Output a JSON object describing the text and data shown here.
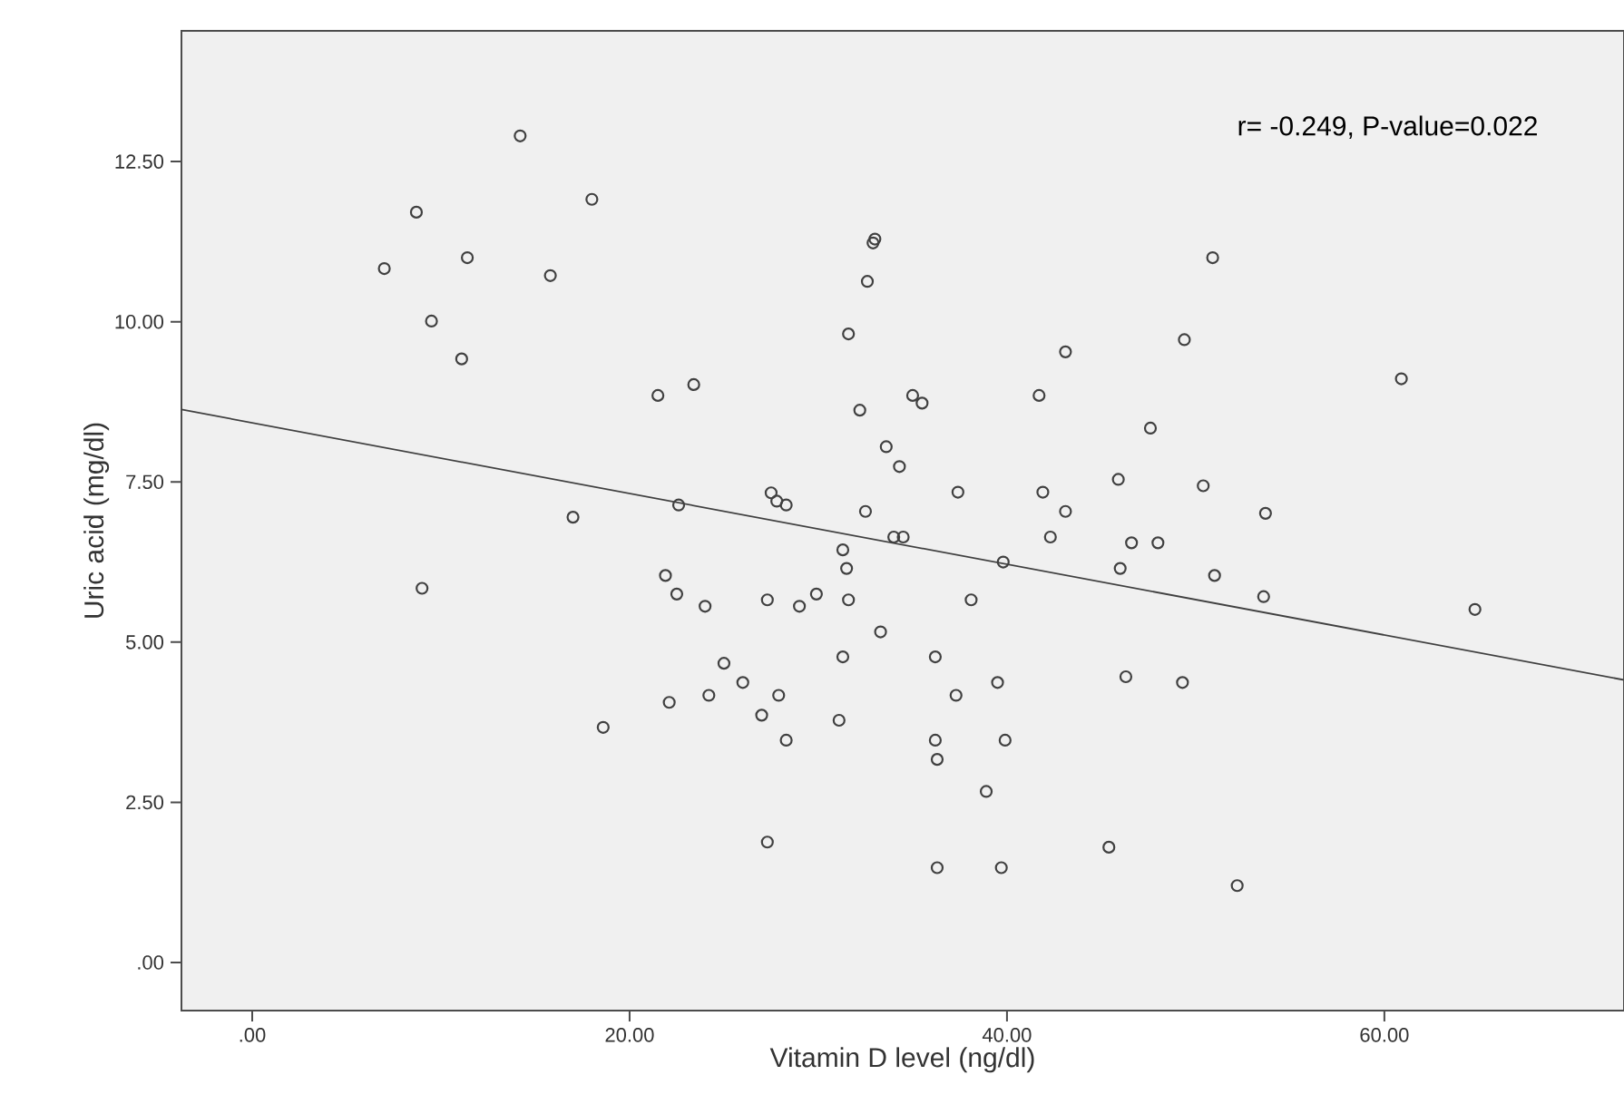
{
  "chart_data": {
    "type": "scatter",
    "xlabel": "Vitamin D level (ng/dl)",
    "ylabel": "Uric acid (mg/dl)",
    "annotations": [
      "r= -0.249, P-value=0.022"
    ],
    "xlim": [
      -3.75,
      72.7
    ],
    "ylim": [
      -0.75,
      14.54
    ],
    "xticks": [
      {
        "value": 0,
        "label": ".00"
      },
      {
        "value": 20,
        "label": "20.00"
      },
      {
        "value": 40,
        "label": "40.00"
      },
      {
        "value": 60,
        "label": "60.00"
      }
    ],
    "yticks": [
      {
        "value": 0,
        "label": ".00"
      },
      {
        "value": 2.5,
        "label": "2.50"
      },
      {
        "value": 5,
        "label": "5.00"
      },
      {
        "value": 7.5,
        "label": "7.50"
      },
      {
        "value": 10,
        "label": "10.00"
      },
      {
        "value": 12.5,
        "label": "12.50"
      }
    ],
    "series": [
      {
        "marker": "circle",
        "color": "#404040",
        "x": [
          14.2,
          8.7,
          18.0,
          11.4,
          7.0,
          15.8,
          9.5,
          11.1,
          21.5,
          23.4,
          22.6,
          17.0,
          33.0,
          32.9,
          32.6,
          31.6,
          50.9,
          49.4,
          43.1,
          32.2,
          35.0,
          35.5,
          41.7,
          47.6,
          33.6,
          34.3,
          45.9,
          50.4,
          37.4,
          41.9,
          43.1,
          32.5,
          27.5,
          27.8,
          28.3,
          34.0,
          34.5,
          42.3,
          46.6,
          48.0,
          31.3,
          31.5,
          39.8,
          46.0,
          51.0,
          24.0,
          27.3,
          29.0,
          29.9,
          31.6,
          38.1,
          33.3,
          31.3,
          36.2,
          46.3,
          49.3,
          25.0,
          26.0,
          24.2,
          27.9,
          39.5,
          37.3,
          27.0,
          31.1,
          28.3,
          36.2,
          39.9,
          36.3,
          38.9,
          27.3,
          36.3,
          39.7,
          45.4,
          52.2,
          9.0,
          21.9,
          22.5,
          22.1,
          18.6,
          60.9,
          53.7,
          53.6,
          64.8
        ],
        "values": [
          12.9,
          11.71,
          11.91,
          11.0,
          10.83,
          10.72,
          10.01,
          9.42,
          8.85,
          9.02,
          7.14,
          6.95,
          11.29,
          11.23,
          10.63,
          9.81,
          11.0,
          9.72,
          9.53,
          8.62,
          8.85,
          8.73,
          8.85,
          8.34,
          8.05,
          7.74,
          7.54,
          7.44,
          7.34,
          7.34,
          7.04,
          7.04,
          7.33,
          7.2,
          7.14,
          6.64,
          6.64,
          6.64,
          6.55,
          6.55,
          6.44,
          6.15,
          6.25,
          6.15,
          6.04,
          5.56,
          5.66,
          5.56,
          5.75,
          5.66,
          5.66,
          5.16,
          4.77,
          4.77,
          4.46,
          4.37,
          4.67,
          4.37,
          4.17,
          4.17,
          4.37,
          4.17,
          3.86,
          3.78,
          3.47,
          3.47,
          3.47,
          3.17,
          2.67,
          1.88,
          1.48,
          1.48,
          1.8,
          1.2,
          5.84,
          6.04,
          5.75,
          4.06,
          3.67,
          9.11,
          7.01,
          5.71,
          5.51
        ]
      },
      {
        "type": "line",
        "marker": "none",
        "line_style": "solid",
        "color": "#404040",
        "x": [
          -3.75,
          72.7
        ],
        "values": [
          8.63,
          4.41
        ]
      }
    ]
  }
}
